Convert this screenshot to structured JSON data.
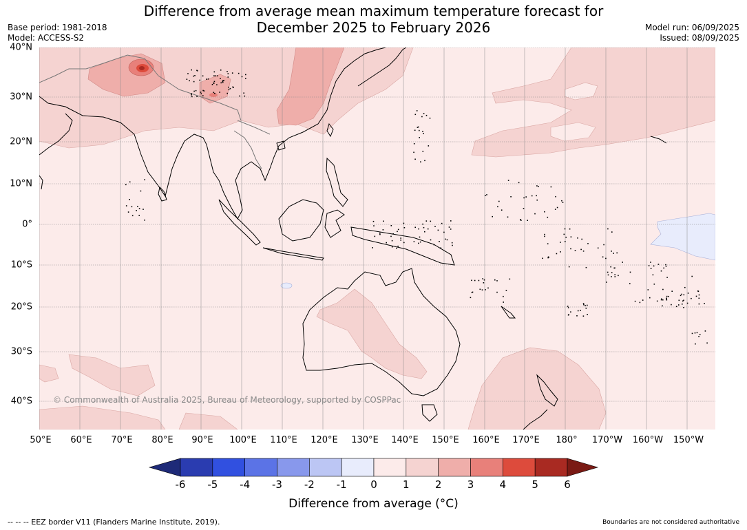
{
  "title_line1": "Difference from average mean maximum temperature forecast for",
  "title_line2": "December 2025 to February 2026",
  "meta_left": {
    "base_period": "Base period: 1981-2018",
    "model": "Model: ACCESS-S2"
  },
  "meta_right": {
    "model_run": "Model run: 06/09/2025",
    "issued": "Issued: 08/09/2025"
  },
  "lat_labels": [
    "40°N",
    "30°N",
    "20°N",
    "10°N",
    "0°",
    "10°S",
    "20°S",
    "30°S",
    "40°S"
  ],
  "lon_labels": [
    "50°E",
    "60°E",
    "70°E",
    "80°E",
    "90°E",
    "100°E",
    "110°E",
    "120°E",
    "130°E",
    "140°E",
    "150°E",
    "160°E",
    "170°E",
    "180°",
    "170°W",
    "160°W",
    "150°W"
  ],
  "copyright": "© Commonwealth of Australia 2025, Bureau of Meteorology, supported by COSPPac",
  "colorbar": {
    "ticks": [
      "-6",
      "-5",
      "-4",
      "-3",
      "-2",
      "-1",
      "0",
      "1",
      "2",
      "3",
      "4",
      "5",
      "6"
    ],
    "colors": [
      "#1e2a78",
      "#2a3cb0",
      "#3150e0",
      "#5b73e6",
      "#8898ec",
      "#bcc6f4",
      "#e8ecfc",
      "#fcebea",
      "#f5d3d1",
      "#efaeaa",
      "#e8807a",
      "#dd4b3c",
      "#a92a22",
      "#7a1a14"
    ],
    "title": "Difference from average (°C)"
  },
  "footer_left": "--  --  -- EEZ border V11 (Flanders Marine Institute, 2019).",
  "footer_right": "Boundaries are not considered authoritative"
}
